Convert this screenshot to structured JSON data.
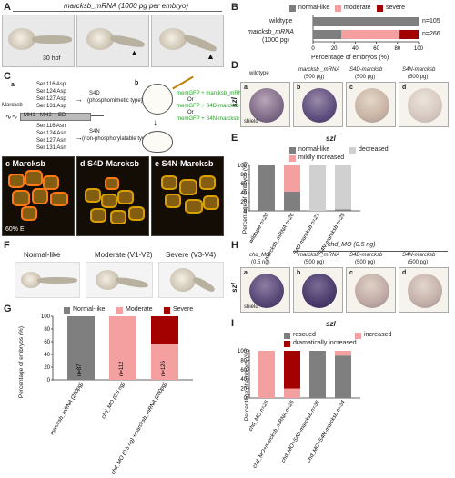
{
  "panelA": {
    "letter": "A",
    "title": "marcksb_mRNA (1000 pg per embryo)",
    "stage": "30 hpf"
  },
  "panelB": {
    "letter": "B",
    "legend": [
      "normal-like",
      "moderate",
      "severe"
    ],
    "colors": {
      "normal": "#7f7f7f",
      "moderate": "#f4a0a0",
      "severe": "#a30000"
    },
    "row_labels": [
      "wildtype",
      "marcksb_mRNA",
      "(1000 pg)"
    ],
    "n_labels": [
      "n=105",
      "n=266"
    ],
    "xlabel": "Percentage of embryos (%)",
    "ticks": [
      "0",
      "20",
      "40",
      "60",
      "80",
      "100"
    ]
  },
  "panelC": {
    "letter": "C",
    "sub_a": "a",
    "sub_b": "b",
    "gene": "Marcksb",
    "domains": [
      "MH1",
      "MH2",
      "ED"
    ],
    "s4d_mutations": [
      "Ser 116 Asp",
      "Ser 124 Asp",
      "Ser 127 Asp",
      "Ser 131 Asp"
    ],
    "s4n_mutations": [
      "Ser 116 Asn",
      "Ser 124 Asn",
      "Ser 127 Asn",
      "Ser 131 Asn"
    ],
    "s4d_name": "S4D",
    "s4d_desc": "(phosphomimetic type)",
    "s4n_name": "S4N",
    "s4n_desc": "(non-phosphorylatable type)",
    "injections": [
      "memGFP + marcksb_mRNA",
      "Or",
      "memGFP + S4D-marcksb",
      "Or",
      "memGFP + S4N-marcksb"
    ],
    "images": [
      {
        "sub": "c",
        "title": "Marcksb"
      },
      {
        "sub": "d",
        "title": "S4D-Marcksb"
      },
      {
        "sub": "e",
        "title": "S4N-Marcksb"
      }
    ],
    "stage": "60% E"
  },
  "panelD": {
    "letter": "D",
    "gene": "szl",
    "headers": [
      {
        "sub": "a",
        "line1": "wildtype",
        "line2": ""
      },
      {
        "sub": "b",
        "line1": "marcksb _mRNA",
        "line2": "(500 pg)"
      },
      {
        "sub": "c",
        "line1": "S4D-marcksb",
        "line2": "(500 pg)"
      },
      {
        "sub": "d",
        "line1": "S4N-marcksb",
        "line2": "(500 pg)"
      }
    ],
    "shield": "shield"
  },
  "panelE": {
    "letter": "E",
    "title": "szl",
    "legend": [
      "normal-like",
      "decreased",
      "mildly increased"
    ],
    "colors": {
      "normal": "#7f7f7f",
      "decreased": "#d0d0d0",
      "increased": "#f4a0a0"
    },
    "ylabel": "Percentage of embryos (%)",
    "yticks": [
      "100",
      "80",
      "60",
      "40",
      "20",
      "0"
    ],
    "x_labels": [
      "wildtype n=20",
      "marcksb_mRNA n=26",
      "S4D-marcksb n=21",
      "S4N-marcksb n=29"
    ]
  },
  "panelF": {
    "letter": "F",
    "labels": [
      "Normal-like",
      "Moderate (V1-V2)",
      "Severe (V3-V4)"
    ]
  },
  "panelG": {
    "letter": "G",
    "legend": [
      "Normal-like",
      "Moderate",
      "Severe"
    ],
    "colors": {
      "normal": "#7f7f7f",
      "moderate": "#f4a0a0",
      "severe": "#a30000"
    },
    "ylabel": "Percentage of embryos (%)",
    "yticks": [
      "100",
      "80",
      "60",
      "40",
      "20",
      "0"
    ],
    "n_labels": [
      "n=87",
      "n=112",
      "n=126"
    ],
    "x_labels": [
      "marcksb_mRNA (200pg)",
      "chd_MO (0.5 ng)",
      "chd_MO (0.5 ng) +marcksb_mRNA (200pg)"
    ]
  },
  "panelH": {
    "letter": "H",
    "gene": "szl",
    "group_header": "chd_MO (0.5 ng)",
    "headers": [
      {
        "sub": "a",
        "line1": "chd_MO",
        "line2": "(0.5 ng)"
      },
      {
        "sub": "b",
        "line1": "marcksb _mRNA",
        "line2": "(500 pg)"
      },
      {
        "sub": "c",
        "line1": "S4D-marcksb",
        "line2": "(500 pg)"
      },
      {
        "sub": "d",
        "line1": "S4N-marcksb",
        "line2": "(500 pg)"
      }
    ],
    "shield": "shield"
  },
  "panelI": {
    "letter": "I",
    "title": "szl",
    "legend": [
      "rescued",
      "increased",
      "dramatically increased"
    ],
    "colors": {
      "rescued": "#7f7f7f",
      "increased": "#f4a0a0",
      "dramatic": "#a30000"
    },
    "ylabel": "Percentage of embryos (%)",
    "yticks": [
      "100",
      "80",
      "60",
      "40",
      "20",
      "0"
    ],
    "x_labels": [
      "chd_MO n=25",
      "chd_MO+marcksb_mRNA n=25",
      "chd_MO+S4D-marcksb n=35",
      "chd_MO+S4N-marcksb n=34"
    ]
  },
  "chart_data": [
    {
      "id": "B",
      "type": "bar",
      "orientation": "horizontal",
      "stacked": true,
      "categories": [
        "wildtype",
        "marcksb_mRNA (1000 pg)"
      ],
      "series": [
        {
          "name": "normal-like",
          "values": [
            100,
            27
          ]
        },
        {
          "name": "moderate",
          "values": [
            0,
            55
          ]
        },
        {
          "name": "severe",
          "values": [
            0,
            18
          ]
        }
      ],
      "annotations": [
        "n=105",
        "n=266"
      ],
      "xlabel": "Percentage of embryos (%)",
      "xlim": [
        0,
        100
      ],
      "legend": "top"
    },
    {
      "id": "E",
      "type": "bar",
      "stacked": true,
      "title": "szl",
      "categories": [
        "wildtype",
        "marcksb_mRNA",
        "S4D-marcksb",
        "S4N-marcksb"
      ],
      "series": [
        {
          "name": "normal-like",
          "values": [
            100,
            42,
            0,
            3
          ]
        },
        {
          "name": "decreased",
          "values": [
            0,
            0,
            100,
            97
          ]
        },
        {
          "name": "mildly increased",
          "values": [
            0,
            58,
            0,
            0
          ]
        }
      ],
      "annotations": [
        "n=20",
        "n=26",
        "n=21",
        "n=29"
      ],
      "ylabel": "Percentage of embryos (%)",
      "ylim": [
        0,
        100
      ],
      "legend": "top"
    },
    {
      "id": "G",
      "type": "bar",
      "stacked": true,
      "categories": [
        "marcksb_mRNA (200pg)",
        "chd_MO (0.5 ng)",
        "chd_MO (0.5 ng) +marcksb_mRNA (200pg)"
      ],
      "series": [
        {
          "name": "Normal-like",
          "values": [
            100,
            0,
            0
          ]
        },
        {
          "name": "Moderate",
          "values": [
            0,
            100,
            57
          ]
        },
        {
          "name": "Severe",
          "values": [
            0,
            0,
            43
          ]
        }
      ],
      "annotations": [
        "n=87",
        "n=112",
        "n=126"
      ],
      "ylabel": "Percentage of embryos (%)",
      "ylim": [
        0,
        100
      ],
      "legend": "top"
    },
    {
      "id": "I",
      "type": "bar",
      "stacked": true,
      "title": "szl",
      "categories": [
        "chd_MO",
        "chd_MO+marcksb_mRNA",
        "chd_MO+S4D-marcksb",
        "chd_MO+S4N-marcksb"
      ],
      "series": [
        {
          "name": "rescued",
          "values": [
            0,
            0,
            100,
            90
          ]
        },
        {
          "name": "increased",
          "values": [
            100,
            20,
            0,
            10
          ]
        },
        {
          "name": "dramatically increased",
          "values": [
            0,
            80,
            0,
            0
          ]
        }
      ],
      "annotations": [
        "n=25",
        "n=25",
        "n=35",
        "n=34"
      ],
      "ylabel": "Percentage of embryos (%)",
      "ylim": [
        0,
        100
      ],
      "legend": "top"
    }
  ]
}
